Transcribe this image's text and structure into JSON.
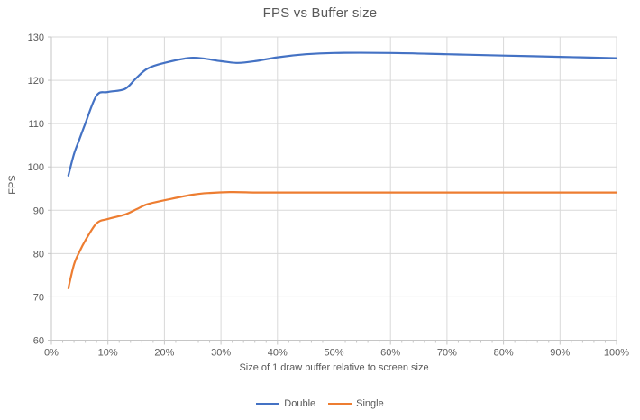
{
  "chart": {
    "title": "FPS vs Buffer size"
  },
  "chart_data": {
    "type": "line",
    "title": "FPS vs Buffer size",
    "xlabel": "Size of 1 draw buffer relative to screen size",
    "ylabel": "FPS",
    "xlim": [
      0,
      100
    ],
    "ylim": [
      60,
      130
    ],
    "grid": true,
    "legend_position": "bottom",
    "x_ticks": [
      0,
      10,
      20,
      30,
      40,
      50,
      60,
      70,
      80,
      90,
      100
    ],
    "x_tick_labels": [
      "0%",
      "10%",
      "20%",
      "30%",
      "40%",
      "50%",
      "60%",
      "70%",
      "80%",
      "90%",
      "100%"
    ],
    "x_minor_tick_step": 2,
    "y_ticks": [
      60,
      70,
      80,
      90,
      100,
      110,
      120,
      130
    ],
    "y_tick_labels": [
      "60",
      "70",
      "80",
      "90",
      "100",
      "110",
      "120",
      "130"
    ],
    "colors": {
      "gridline": "#d9d9d9",
      "axis": "#c6c6c6",
      "text": "#595959",
      "series_double": "#4472c4",
      "series_single": "#ed7d31"
    },
    "series": [
      {
        "name": "Double",
        "color": "#4472c4",
        "points": [
          [
            3,
            98
          ],
          [
            4,
            103
          ],
          [
            5,
            106.5
          ],
          [
            6,
            110
          ],
          [
            8,
            116.5
          ],
          [
            10,
            117.3
          ],
          [
            13,
            118
          ],
          [
            15,
            120.5
          ],
          [
            17,
            122.7
          ],
          [
            20,
            124
          ],
          [
            25,
            125.2
          ],
          [
            30,
            124.4
          ],
          [
            33,
            124
          ],
          [
            36,
            124.4
          ],
          [
            40,
            125.3
          ],
          [
            45,
            126
          ],
          [
            50,
            126.3
          ],
          [
            60,
            126.3
          ],
          [
            70,
            126
          ],
          [
            80,
            125.7
          ],
          [
            90,
            125.4
          ],
          [
            100,
            125.1
          ]
        ]
      },
      {
        "name": "Single",
        "color": "#ed7d31",
        "points": [
          [
            3,
            72
          ],
          [
            4,
            77.5
          ],
          [
            5,
            80.5
          ],
          [
            6,
            83
          ],
          [
            8,
            87
          ],
          [
            10,
            88
          ],
          [
            13,
            89
          ],
          [
            15,
            90.2
          ],
          [
            17,
            91.4
          ],
          [
            20,
            92.3
          ],
          [
            25,
            93.6
          ],
          [
            28,
            94
          ],
          [
            32,
            94.2
          ],
          [
            36,
            94.1
          ],
          [
            40,
            94.1
          ],
          [
            50,
            94.1
          ],
          [
            60,
            94.1
          ],
          [
            70,
            94.1
          ],
          [
            80,
            94.1
          ],
          [
            90,
            94.1
          ],
          [
            100,
            94.1
          ]
        ]
      }
    ]
  }
}
